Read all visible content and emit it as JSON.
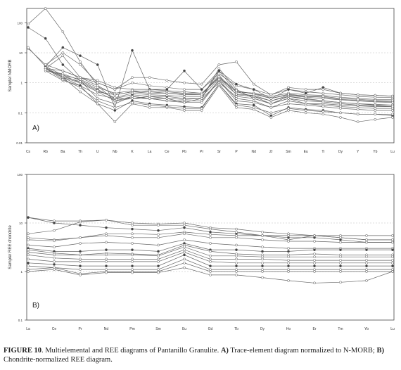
{
  "caption": {
    "label": "FIGURE 10",
    "text_1": ". Multielemental and REE diagrams of Pantanillo Granulite. ",
    "a_letter": "A)",
    "text_2": " Trace-element diagram normalized to N-MORB; ",
    "b_letter": "B)",
    "text_3": " Chondrite-normalized REE diagram."
  },
  "chart_data": [
    {
      "type": "line",
      "panel_label": "A)",
      "ylabel": "Sample/ NMORB",
      "yscale": "log",
      "ylim": [
        0.01,
        300
      ],
      "yticks": [
        0.01,
        0.1,
        1,
        10,
        100
      ],
      "ytick_labels": [
        "0.01",
        "0.1",
        "1",
        "10",
        "100"
      ],
      "grid": "horizontal",
      "categories": [
        "Cs",
        "Rb",
        "Ba",
        "Th",
        "U",
        "Nb",
        "K",
        "La",
        "Ce",
        "Pb",
        "Pr",
        "Sr",
        "P",
        "Nd",
        "Zr",
        "Sm",
        "Eu",
        "Ti",
        "Dy",
        "Y",
        "Yb",
        "Lu"
      ],
      "series": [
        {
          "values": [
            90,
            300,
            50,
            5,
            0.8,
            0.25,
            0.35,
            0.3,
            0.3,
            0.22,
            0.3,
            3,
            0.6,
            0.3,
            0.2,
            0.3,
            0.2,
            0.2,
            0.18,
            0.17,
            0.16,
            0.16
          ]
        },
        {
          "values": [
            70,
            30,
            4,
            1.2,
            0.6,
            0.3,
            0.4,
            0.35,
            0.35,
            0.3,
            0.3,
            2.5,
            0.5,
            0.35,
            0.25,
            0.35,
            0.28,
            0.25,
            0.22,
            0.2,
            0.18,
            0.18
          ]
        },
        {
          "values": [
            14,
            4,
            2.5,
            1.5,
            1.2,
            0.7,
            0.6,
            0.6,
            0.55,
            0.5,
            0.45,
            1.5,
            0.5,
            0.45,
            0.35,
            0.45,
            0.4,
            0.38,
            0.33,
            0.3,
            0.28,
            0.28
          ]
        },
        {
          "values": [
            15,
            3.5,
            1.8,
            1,
            0.5,
            0.4,
            0.5,
            0.45,
            0.45,
            0.4,
            0.4,
            1.8,
            0.4,
            0.35,
            0.2,
            0.35,
            0.3,
            0.25,
            0.22,
            0.2,
            0.19,
            0.18
          ]
        },
        {
          "values": [
            null,
            2.5,
            1.2,
            0.8,
            0.4,
            0.3,
            0.3,
            0.3,
            0.25,
            0.25,
            0.25,
            1.2,
            0.3,
            0.25,
            0.15,
            0.25,
            0.2,
            0.18,
            0.16,
            0.15,
            0.14,
            0.14
          ]
        },
        {
          "values": [
            null,
            3,
            8,
            1.5,
            1,
            0.6,
            1,
            0.8,
            0.7,
            0.6,
            0.6,
            2,
            0.8,
            0.6,
            0.4,
            0.6,
            0.5,
            0.45,
            0.4,
            0.35,
            0.33,
            0.32
          ]
        },
        {
          "values": [
            null,
            3.5,
            15,
            8,
            4,
            0.15,
            12,
            0.6,
            0.6,
            2.5,
            0.6,
            2.5,
            0.9,
            0.6,
            0.3,
            0.6,
            0.45,
            0.7,
            0.45,
            0.4,
            0.38,
            0.36
          ]
        },
        {
          "values": [
            null,
            4,
            10,
            4,
            1,
            0.6,
            1.5,
            1.5,
            1.2,
            1,
            0.9,
            4,
            5,
            0.9,
            0.4,
            0.7,
            0.6,
            0.6,
            0.45,
            0.4,
            0.38,
            0.36
          ]
        },
        {
          "values": [
            null,
            3,
            2.5,
            1.5,
            0.8,
            0.4,
            0.5,
            0.55,
            0.5,
            0.45,
            0.45,
            1.4,
            0.5,
            0.45,
            0.3,
            0.4,
            0.35,
            0.33,
            0.28,
            0.26,
            0.24,
            0.23
          ]
        },
        {
          "values": [
            null,
            3,
            1.5,
            1,
            0.5,
            0.25,
            0.3,
            0.35,
            0.3,
            0.28,
            0.3,
            1,
            0.35,
            0.3,
            0.2,
            0.3,
            0.25,
            0.23,
            0.2,
            0.18,
            0.17,
            0.16
          ]
        },
        {
          "values": [
            null,
            2.5,
            2,
            1.2,
            0.3,
            0.2,
            0.35,
            0.3,
            0.25,
            0.22,
            0.22,
            1.2,
            0.25,
            0.22,
            0.15,
            0.2,
            0.18,
            0.16,
            0.14,
            0.13,
            0.12,
            0.12
          ]
        },
        {
          "values": [
            null,
            3,
            1.5,
            0.8,
            0.2,
            0.12,
            0.25,
            0.2,
            0.18,
            0.16,
            0.15,
            0.9,
            0.2,
            0.18,
            0.08,
            0.15,
            0.13,
            0.12,
            0.1,
            0.09,
            0.09,
            0.08
          ]
        },
        {
          "values": [
            null,
            3,
            1.5,
            0.5,
            0.2,
            0.05,
            0.2,
            0.15,
            0.15,
            0.12,
            0.12,
            0.8,
            0.15,
            0.13,
            0.07,
            0.12,
            0.1,
            0.09,
            0.07,
            0.05,
            0.06,
            0.07
          ]
        },
        {
          "values": [
            null,
            3,
            1.3,
            0.7,
            0.25,
            0.15,
            0.22,
            0.18,
            0.16,
            0.14,
            0.14,
            0.9,
            0.18,
            0.15,
            0.1,
            0.14,
            0.12,
            0.11,
            0.1,
            0.09,
            0.09,
            0.09
          ]
        },
        {
          "values": [
            null,
            3.2,
            1.6,
            1.1,
            0.55,
            0.32,
            0.45,
            0.4,
            0.38,
            0.35,
            0.35,
            1.3,
            0.42,
            0.38,
            0.25,
            0.38,
            0.33,
            0.3,
            0.27,
            0.25,
            0.23,
            0.22
          ]
        },
        {
          "values": [
            null,
            2.8,
            1.8,
            1.3,
            0.7,
            0.45,
            0.55,
            0.5,
            0.45,
            0.42,
            0.4,
            1.6,
            0.55,
            0.42,
            0.3,
            0.42,
            0.36,
            0.35,
            0.3,
            0.28,
            0.26,
            0.25
          ]
        }
      ]
    },
    {
      "type": "line",
      "panel_label": "B)",
      "ylabel": "Sample/ REE chondrite",
      "yscale": "log",
      "ylim": [
        0.1,
        100
      ],
      "yticks": [
        0.1,
        1,
        10,
        100
      ],
      "ytick_labels": [
        "0.1",
        "1",
        "10",
        "100"
      ],
      "grid": "horizontal",
      "categories": [
        "La",
        "Ce",
        "Pr",
        "Nd",
        "Pm",
        "Sm",
        "Eu",
        "Gd",
        "Tb",
        "Dy",
        "Ho",
        "Er",
        "Tm",
        "Yb",
        "Lu"
      ],
      "series": [
        {
          "values": [
            13,
            11,
            11,
            11.5,
            10,
            9.5,
            10,
            8,
            7.5,
            6.5,
            6,
            5.5,
            5,
            4.5,
            4.5
          ]
        },
        {
          "values": [
            13,
            10,
            9,
            8,
            7.5,
            7,
            8,
            6.5,
            6,
            5.5,
            5,
            5,
            4.5,
            4,
            4
          ]
        },
        {
          "values": [
            6,
            7,
            10.5,
            11.5,
            9,
            9,
            9,
            7.5,
            6.5,
            5.5,
            4.5,
            5.5,
            5,
            4.5,
            4.5
          ]
        },
        {
          "values": [
            5,
            4.5,
            5,
            6,
            6,
            5.8,
            6.5,
            5.8,
            5.5,
            5.5,
            5.5,
            5.5,
            5.5,
            5.5,
            5.5
          ]
        },
        {
          "values": [
            4.5,
            4.3,
            5,
            5.5,
            5,
            5,
            6,
            5,
            5,
            4.5,
            4.2,
            4.2,
            4,
            4,
            4
          ]
        },
        {
          "values": [
            3.5,
            3.2,
            3.8,
            4,
            3.8,
            3.5,
            4.5,
            3.8,
            3.5,
            3.2,
            3,
            3,
            3,
            3,
            3
          ]
        },
        {
          "values": [
            3,
            2.6,
            2.6,
            2.8,
            2.8,
            2.6,
            3.8,
            2.8,
            2.8,
            2.6,
            2.6,
            2.8,
            2.8,
            2.8,
            2.8
          ]
        },
        {
          "values": [
            2.8,
            2.4,
            2.2,
            2.4,
            2.3,
            2.2,
            3.5,
            2.6,
            2.3,
            2.2,
            2.2,
            2.3,
            2.2,
            2.2,
            2.2
          ]
        },
        {
          "values": [
            2.5,
            2.2,
            2.2,
            2.2,
            2.2,
            2.1,
            3.2,
            2.1,
            2.1,
            2,
            2,
            2,
            2,
            2,
            2
          ]
        },
        {
          "values": [
            2.2,
            1.9,
            1.8,
            1.8,
            1.8,
            1.8,
            2.8,
            1.8,
            1.8,
            1.8,
            1.7,
            1.7,
            1.7,
            1.7,
            1.7
          ]
        },
        {
          "values": [
            1.8,
            1.6,
            1.6,
            1.6,
            1.6,
            1.6,
            2.5,
            1.6,
            1.5,
            1.5,
            1.5,
            1.5,
            1.5,
            1.5,
            1.5
          ]
        },
        {
          "values": [
            1.5,
            1.4,
            1.3,
            1.3,
            1.3,
            1.3,
            2.2,
            1.3,
            1.3,
            1.3,
            1.3,
            1.3,
            1.3,
            1.3,
            1.3
          ]
        },
        {
          "values": [
            1.3,
            1.2,
            1.1,
            1.1,
            1.1,
            1.1,
            1.8,
            1.1,
            1.1,
            1.1,
            1.1,
            1.1,
            1.1,
            1.1,
            1.1
          ]
        },
        {
          "values": [
            1.1,
            1.2,
            0.9,
            1,
            1,
            1,
            1.5,
            1,
            1,
            1,
            1,
            1,
            1,
            1,
            1
          ]
        },
        {
          "values": [
            1,
            1.1,
            0.85,
            0.95,
            0.95,
            0.95,
            1.2,
            0.85,
            0.85,
            0.75,
            0.65,
            0.58,
            0.6,
            0.65,
            1
          ]
        }
      ]
    }
  ]
}
